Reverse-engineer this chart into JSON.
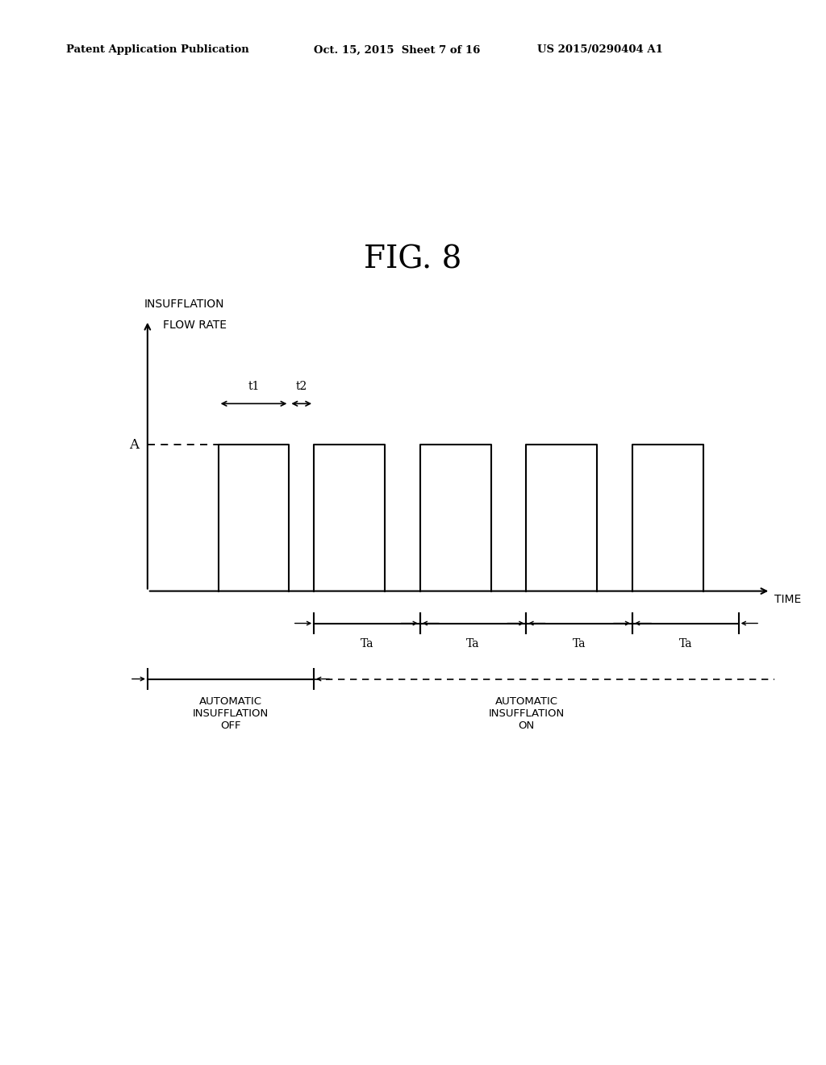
{
  "fig_title": "FIG. 8",
  "header_left": "Patent Application Publication",
  "header_mid": "Oct. 15, 2015  Sheet 7 of 16",
  "header_right": "US 2015/0290404 A1",
  "ylabel_line1": "INSUFFLATION",
  "ylabel_line2": "FLOW RATE",
  "xlabel": "TIME",
  "A_label": "A",
  "t1_label": "t1",
  "t2_label": "t2",
  "Ta_label": "Ta",
  "auto_off_label": "AUTOMATIC\nINSUFFLATION\nOFF",
  "auto_on_label": "AUTOMATIC\nINSUFFLATION\nON",
  "background_color": "#ffffff",
  "line_color": "#000000"
}
